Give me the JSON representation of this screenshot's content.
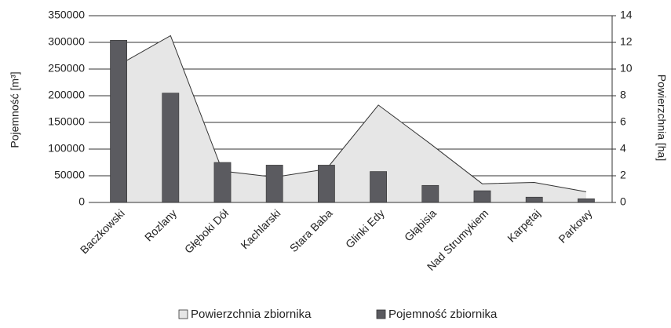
{
  "chart_data": {
    "type": "bar",
    "y_label": "Pojemność [m³]",
    "y2_label": "Powierzchnia [ha]",
    "categories": [
      "Baczkowski",
      "Rozlany",
      "Głęboki Dół",
      "Kachlarski",
      "Stara Baba",
      "Glinki Edy",
      "Głąbisia",
      "Nad Strumykiem",
      "Karpętaj",
      "Parkowy"
    ],
    "series": [
      {
        "name": "Powierzchnia zbiornika",
        "type": "area",
        "axis": "y2",
        "color": "#e6e6e6",
        "values": [
          10.3,
          12.5,
          2.35,
          1.9,
          2.5,
          7.3,
          4.4,
          1.4,
          1.5,
          0.8
        ]
      },
      {
        "name": "Pojemność zbiornika",
        "type": "bar",
        "color": "#5b5b60",
        "values": [
          304000,
          205000,
          75000,
          70000,
          70000,
          58000,
          32000,
          22000,
          10000,
          7000
        ]
      }
    ],
    "ylim": [
      0,
      350000
    ],
    "yticks": [
      0,
      50000,
      100000,
      150000,
      200000,
      250000,
      300000,
      350000
    ],
    "y2lim": [
      0,
      14
    ],
    "y2ticks": [
      0,
      2,
      4,
      6,
      8,
      10,
      12,
      14
    ],
    "grid": true,
    "legend": "bottom"
  }
}
